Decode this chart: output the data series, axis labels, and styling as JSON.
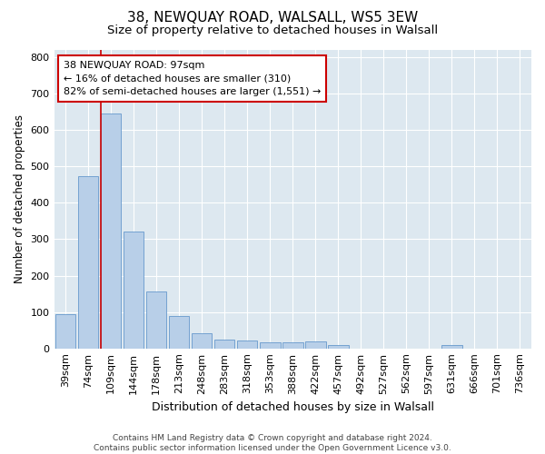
{
  "title": "38, NEWQUAY ROAD, WALSALL, WS5 3EW",
  "subtitle": "Size of property relative to detached houses in Walsall",
  "xlabel": "Distribution of detached houses by size in Walsall",
  "ylabel": "Number of detached properties",
  "categories": [
    "39sqm",
    "74sqm",
    "109sqm",
    "144sqm",
    "178sqm",
    "213sqm",
    "248sqm",
    "283sqm",
    "318sqm",
    "353sqm",
    "388sqm",
    "422sqm",
    "457sqm",
    "492sqm",
    "527sqm",
    "562sqm",
    "597sqm",
    "631sqm",
    "666sqm",
    "701sqm",
    "736sqm"
  ],
  "values": [
    95,
    472,
    645,
    320,
    157,
    88,
    42,
    25,
    22,
    16,
    16,
    18,
    10,
    0,
    0,
    0,
    0,
    8,
    0,
    0,
    0
  ],
  "bar_color": "#b8cfe8",
  "bar_edge_color": "#6699cc",
  "vline_x": 2.0,
  "vline_color": "#cc0000",
  "annotation_text": "38 NEWQUAY ROAD: 97sqm\n← 16% of detached houses are smaller (310)\n82% of semi-detached houses are larger (1,551) →",
  "annotation_box_color": "#ffffff",
  "annotation_box_edge": "#cc0000",
  "ylim": [
    0,
    820
  ],
  "yticks": [
    0,
    100,
    200,
    300,
    400,
    500,
    600,
    700,
    800
  ],
  "bg_color": "#dde8f0",
  "footer": "Contains HM Land Registry data © Crown copyright and database right 2024.\nContains public sector information licensed under the Open Government Licence v3.0.",
  "title_fontsize": 11,
  "subtitle_fontsize": 9.5,
  "tick_fontsize": 8,
  "ylabel_fontsize": 8.5,
  "xlabel_fontsize": 9
}
